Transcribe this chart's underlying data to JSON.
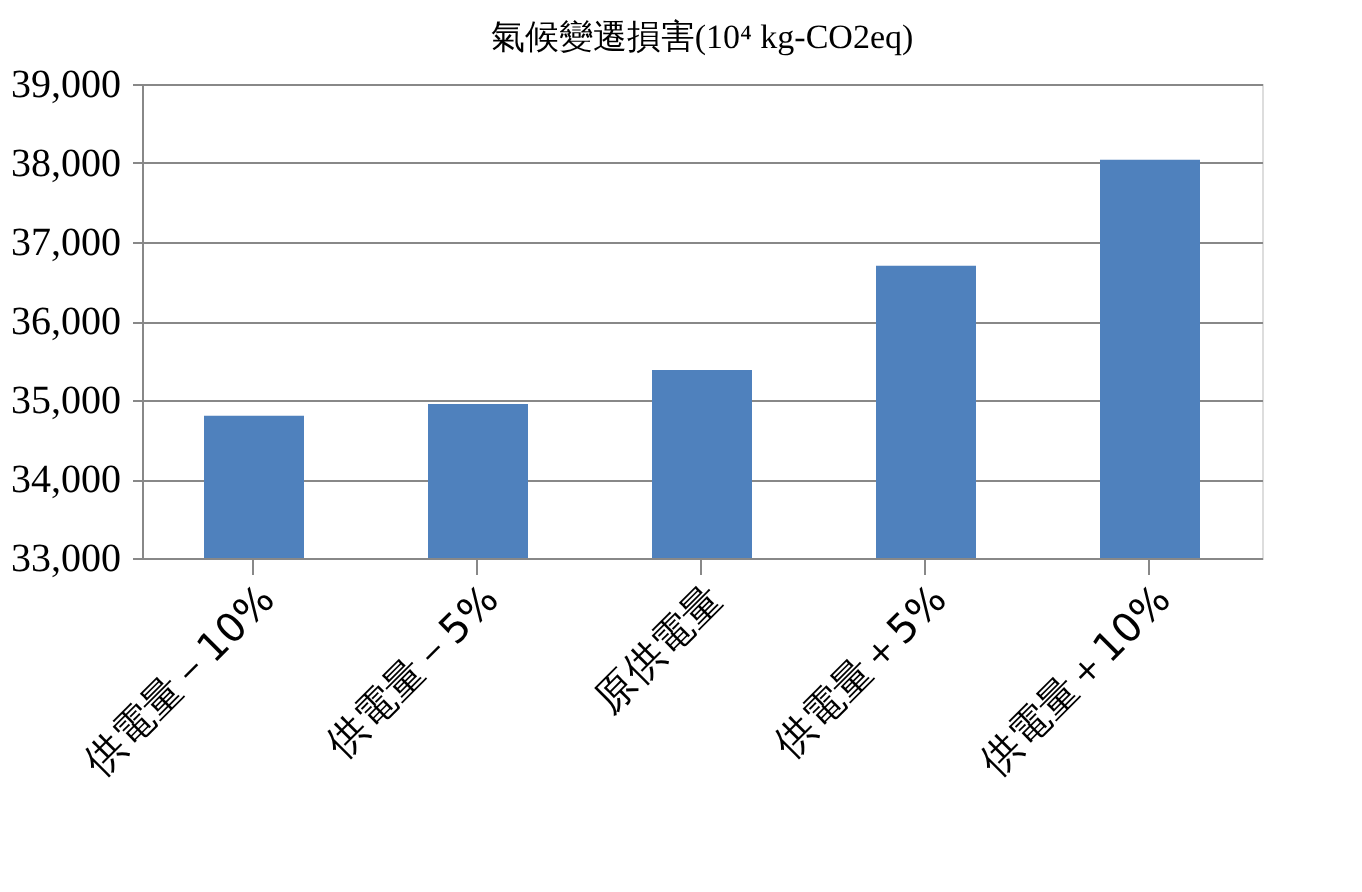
{
  "chart_data": {
    "type": "bar",
    "title": "氣候變遷損害(10⁴ kg-CO2eq)",
    "categories": [
      "供電量－10%",
      "供電量－5%",
      "原供電量",
      "供電量＋5%",
      "供電量＋10%"
    ],
    "values": [
      34800,
      34950,
      35380,
      36700,
      38040
    ],
    "color": "#4f81bd",
    "ylim": [
      33000,
      39000
    ],
    "yticks": [
      {
        "value": 33000,
        "label": "33,000"
      },
      {
        "value": 34000,
        "label": "34,000"
      },
      {
        "value": 35000,
        "label": "35,000"
      },
      {
        "value": 36000,
        "label": "36,000"
      },
      {
        "value": 37000,
        "label": "37,000"
      },
      {
        "value": 38000,
        "label": "38,000"
      },
      {
        "value": 39000,
        "label": "39,000"
      }
    ],
    "grid": "y"
  }
}
